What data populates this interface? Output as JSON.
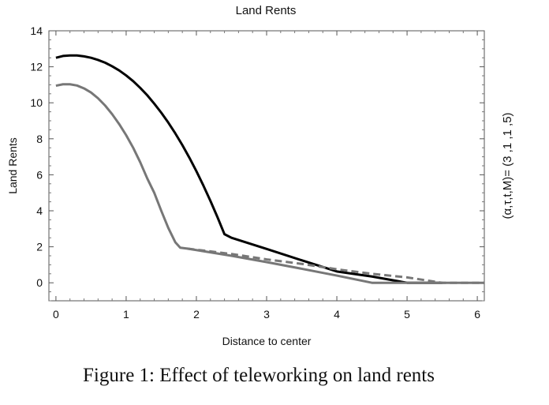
{
  "caption": "Figure 1: Effect of teleworking on land rents",
  "side_label": "(α,τ,t,M)= (3 ,1 ,1 ,5)",
  "chart_data": {
    "type": "line",
    "title": "Land Rents",
    "xlabel": "Distance to center",
    "ylabel": "Land Rents",
    "xlim": [
      -0.1,
      6.1
    ],
    "ylim": [
      -1,
      14
    ],
    "xticks": [
      0,
      1,
      2,
      3,
      4,
      5,
      6
    ],
    "yticks": [
      0,
      2,
      4,
      6,
      8,
      10,
      12,
      14
    ],
    "grid": false,
    "legend": "none",
    "series": [
      {
        "color": "#000000",
        "dash": false,
        "points": [
          [
            0,
            12.5
          ],
          [
            0.1,
            12.6
          ],
          [
            0.2,
            12.63
          ],
          [
            0.3,
            12.63
          ],
          [
            0.4,
            12.58
          ],
          [
            0.5,
            12.5
          ],
          [
            0.6,
            12.38
          ],
          [
            0.7,
            12.23
          ],
          [
            0.8,
            12.03
          ],
          [
            0.9,
            11.8
          ],
          [
            1.0,
            11.52
          ],
          [
            1.1,
            11.2
          ],
          [
            1.2,
            10.83
          ],
          [
            1.3,
            10.42
          ],
          [
            1.4,
            9.95
          ],
          [
            1.5,
            9.45
          ],
          [
            1.6,
            8.9
          ],
          [
            1.7,
            8.3
          ],
          [
            1.8,
            7.65
          ],
          [
            1.9,
            6.95
          ],
          [
            2.0,
            6.2
          ],
          [
            2.1,
            5.4
          ],
          [
            2.2,
            4.55
          ],
          [
            2.3,
            3.65
          ],
          [
            2.4,
            2.7
          ],
          [
            2.5,
            2.5
          ],
          [
            3.0,
            1.88
          ],
          [
            3.5,
            1.25
          ],
          [
            4.0,
            0.63
          ],
          [
            4.5,
            0.35
          ],
          [
            5.0,
            0.0
          ],
          [
            5.5,
            0.0
          ]
        ]
      },
      {
        "color": "#777777",
        "dash": false,
        "points": [
          [
            0,
            10.95
          ],
          [
            0.1,
            11.03
          ],
          [
            0.2,
            11.03
          ],
          [
            0.3,
            10.96
          ],
          [
            0.4,
            10.8
          ],
          [
            0.5,
            10.57
          ],
          [
            0.6,
            10.25
          ],
          [
            0.7,
            9.85
          ],
          [
            0.8,
            9.37
          ],
          [
            0.9,
            8.82
          ],
          [
            1.0,
            8.2
          ],
          [
            1.1,
            7.5
          ],
          [
            1.2,
            6.7
          ],
          [
            1.3,
            5.8
          ],
          [
            1.4,
            5.0
          ],
          [
            1.5,
            4.0
          ],
          [
            1.6,
            3.05
          ],
          [
            1.7,
            2.25
          ],
          [
            1.77,
            1.95
          ],
          [
            1.87,
            1.9
          ],
          [
            2.5,
            1.5
          ],
          [
            3.0,
            1.15
          ],
          [
            3.5,
            0.78
          ],
          [
            4.0,
            0.4
          ],
          [
            4.5,
            0.0
          ],
          [
            5.0,
            0.0
          ],
          [
            6.1,
            0.0
          ]
        ]
      },
      {
        "color": "#777777",
        "dash": true,
        "points": [
          [
            1.87,
            1.9
          ],
          [
            2.5,
            1.6
          ],
          [
            3.0,
            1.3
          ],
          [
            3.5,
            1.05
          ],
          [
            4.0,
            0.75
          ],
          [
            4.5,
            0.5
          ],
          [
            5.0,
            0.3
          ],
          [
            5.5,
            0.0
          ],
          [
            6.1,
            0.0
          ]
        ]
      }
    ]
  }
}
